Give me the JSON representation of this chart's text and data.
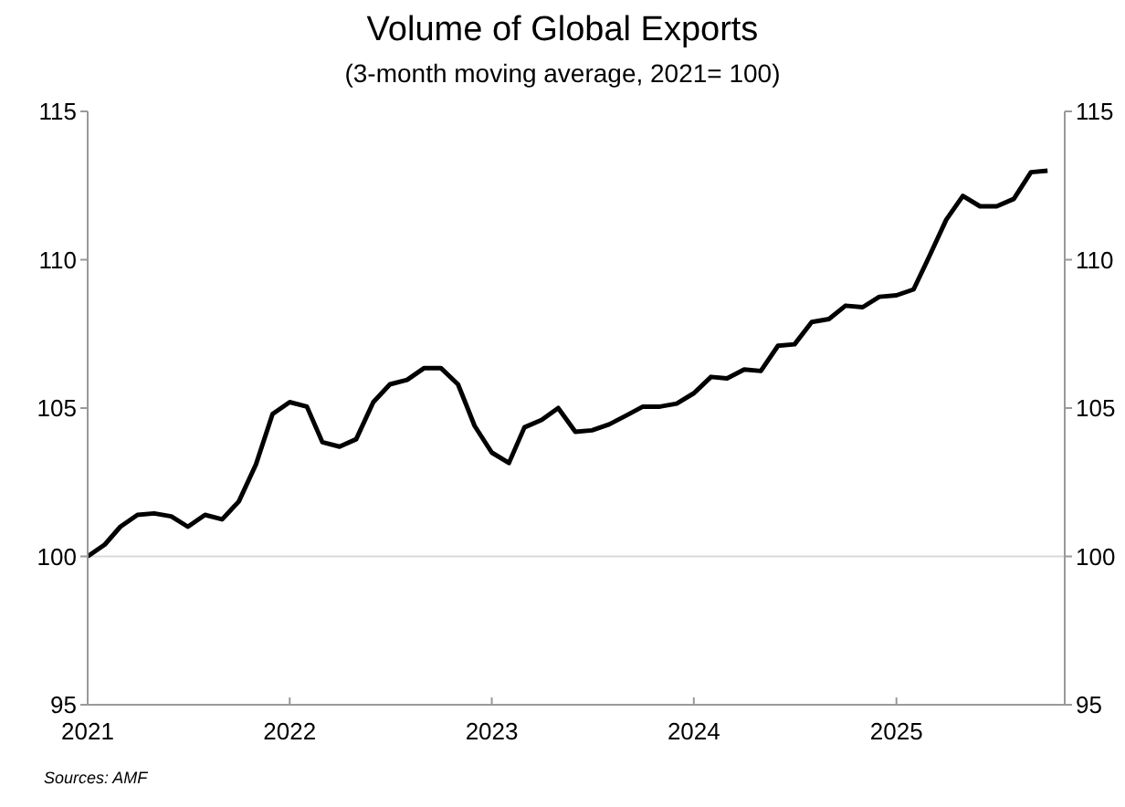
{
  "chart_data": {
    "type": "line",
    "title": "Volume of Global Exports",
    "subtitle": "(3-month moving average, 2021= 100)",
    "x": [
      "2021-01",
      "2021-02",
      "2021-03",
      "2021-04",
      "2021-05",
      "2021-06",
      "2021-07",
      "2021-08",
      "2021-09",
      "2021-10",
      "2021-11",
      "2021-12",
      "2022-01",
      "2022-02",
      "2022-03",
      "2022-04",
      "2022-05",
      "2022-06",
      "2022-07",
      "2022-08",
      "2022-09",
      "2022-10",
      "2022-11",
      "2022-12",
      "2023-01",
      "2023-02",
      "2023-03",
      "2023-04",
      "2023-05",
      "2023-06",
      "2023-07",
      "2023-08",
      "2023-09",
      "2023-10",
      "2023-11",
      "2023-12",
      "2024-01",
      "2024-02",
      "2024-03",
      "2024-04",
      "2024-05",
      "2024-06",
      "2024-07",
      "2024-08",
      "2024-09",
      "2024-10",
      "2024-11",
      "2024-12",
      "2025-01",
      "2025-02",
      "2025-03",
      "2025-04",
      "2025-05",
      "2025-06",
      "2025-07",
      "2025-08",
      "2025-09",
      "2025-10"
    ],
    "series": [
      {
        "color": "#000000",
        "values": [
          100.0,
          100.4,
          101.0,
          101.4,
          101.45,
          101.35,
          101.0,
          101.4,
          101.25,
          101.85,
          103.1,
          104.8,
          105.2,
          105.05,
          103.85,
          103.7,
          103.95,
          105.2,
          105.8,
          105.95,
          106.35,
          106.35,
          105.8,
          104.4,
          103.5,
          103.15,
          104.35,
          104.6,
          105.0,
          104.2,
          104.25,
          104.45,
          104.75,
          105.05,
          105.05,
          105.15,
          105.5,
          106.05,
          106.0,
          106.3,
          106.25,
          107.1,
          107.15,
          107.9,
          108.0,
          108.45,
          108.4,
          108.75,
          108.8,
          109.0,
          110.1,
          111.35,
          112.15,
          111.8,
          111.8,
          112.05,
          112.95,
          113.0
        ]
      }
    ],
    "xlim": [
      "2021-01",
      "2025-11"
    ],
    "xticks": [
      "2021",
      "2022",
      "2023",
      "2024",
      "2025"
    ],
    "ylim": [
      95,
      115
    ],
    "yticks": [
      95,
      100,
      105,
      110,
      115
    ],
    "y2lim": [
      95,
      115
    ],
    "y2ticks": [
      95,
      100,
      105,
      110,
      115
    ],
    "ref_lines": [
      {
        "axis": "y",
        "value": 100,
        "color": "#d9d9d9"
      }
    ],
    "annotations": [
      "Sources: AMF"
    ],
    "grid": false,
    "legend": false,
    "marker": "none",
    "line_style": "solid"
  }
}
